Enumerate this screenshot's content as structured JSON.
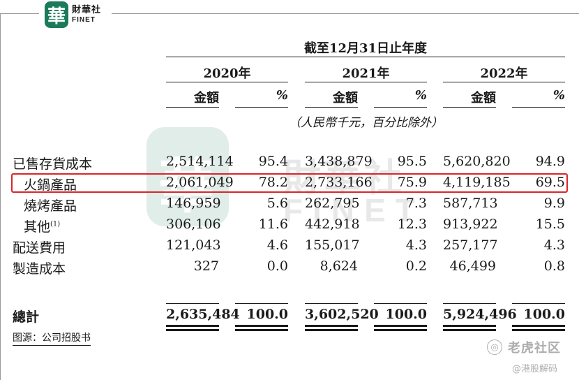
{
  "logo": {
    "mark": "華",
    "cn": "財華社",
    "en": "FINET"
  },
  "watermark": {
    "mark": "華",
    "cn": "財華社",
    "en": "FINET"
  },
  "header": {
    "period": "截至12月31日止年度",
    "years": [
      "2020年",
      "2021年",
      "2022年"
    ],
    "amount_label": "金額",
    "pct_label": "%",
    "unit_note": "（人民幣千元，百分比除外）"
  },
  "rows": [
    {
      "label": "已售存貨成本",
      "sup": "",
      "v2020": "2,514,114",
      "p2020": "95.4",
      "v2021": "3,438,879",
      "p2021": "95.5",
      "v2022": "5,620,820",
      "p2022": "94.9"
    },
    {
      "label": "火鍋產品",
      "sup": "",
      "v2020": "2,061,049",
      "p2020": "78.2",
      "v2021": "2,733,166",
      "p2021": "75.9",
      "v2022": "4,119,185",
      "p2022": "69.5"
    },
    {
      "label": "燒烤產品",
      "sup": "",
      "v2020": "146,959",
      "p2020": "5.6",
      "v2021": "262,795",
      "p2021": "7.3",
      "v2022": "587,713",
      "p2022": "9.9"
    },
    {
      "label": "其他",
      "sup": "(1)",
      "v2020": "306,106",
      "p2020": "11.6",
      "v2021": "442,918",
      "p2021": "12.3",
      "v2022": "913,922",
      "p2022": "15.5"
    },
    {
      "label": "配送費用",
      "sup": "",
      "v2020": "121,043",
      "p2020": "4.6",
      "v2021": "155,017",
      "p2021": "4.3",
      "v2022": "257,177",
      "p2022": "4.3"
    },
    {
      "label": "製造成本",
      "sup": "",
      "v2020": "327",
      "p2020": "0.0",
      "v2021": "8,624",
      "p2021": "0.2",
      "v2022": "46,499",
      "p2022": "0.8"
    }
  ],
  "total": {
    "label": "總計",
    "v2020": "2,635,484",
    "p2020": "100.0",
    "v2021": "3,602,520",
    "p2021": "100.0",
    "v2022": "5,924,496",
    "p2022": "100.0"
  },
  "source": "图源：公司招股书",
  "brand": {
    "name": "老虎社区",
    "handle": "@港股解码"
  },
  "colors": {
    "highlight_border": "#d9262b",
    "logo_green": "#1b7a5a"
  }
}
